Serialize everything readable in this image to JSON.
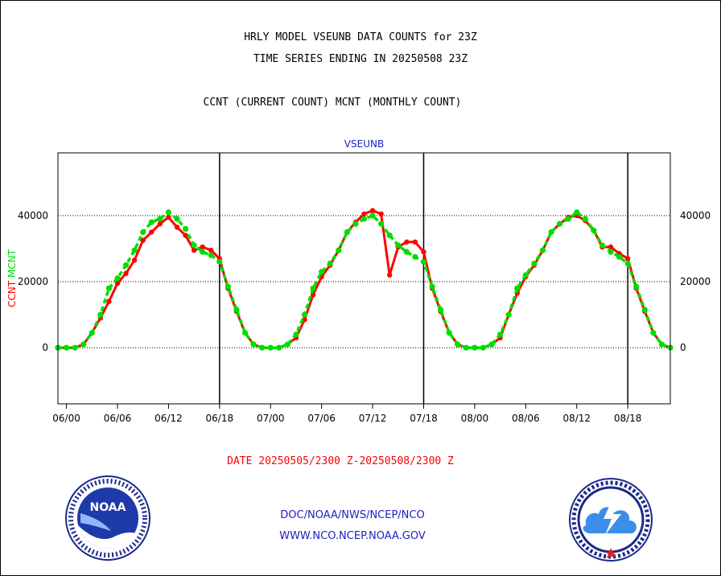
{
  "header": {
    "title_line1": "HRLY MODEL VSEUNB DATA COUNTS for 23Z",
    "title_line2": "TIME SERIES ENDING IN 20250508 23Z",
    "title_line3": "CCNT (CURRENT COUNT) MCNT (MONTHLY COUNT)"
  },
  "footer": {
    "date_range": "DATE 20250505/2300 Z-20250508/2300 Z",
    "agency": "DOC/NOAA/NWS/NCEP/NCO",
    "website": "WWW.NCO.NCEP.NOAA.GOV"
  },
  "logos": {
    "noaa_text": "NOAA"
  },
  "chart_data": {
    "type": "line",
    "panel_label": "VSEUNB",
    "ylabel_ccnt": "CCNT",
    "ylabel_mcnt": "MCNT",
    "ylim": [
      -17000,
      59000
    ],
    "xlim": [
      -1,
      71
    ],
    "y_ticks": [
      0,
      20000,
      40000
    ],
    "y_tick_labels": [
      "0",
      "20000",
      "40000"
    ],
    "x_ticks": [
      0,
      6,
      12,
      18,
      24,
      30,
      36,
      42,
      48,
      54,
      60,
      66
    ],
    "x_tick_labels": [
      "06/00",
      "06/06",
      "06/12",
      "06/18",
      "07/00",
      "07/06",
      "07/12",
      "07/18",
      "08/00",
      "08/06",
      "08/12",
      "08/18"
    ],
    "day_separators": [
      18,
      42,
      66
    ],
    "colors": {
      "ccnt": "#ff0000",
      "mcnt": "#00dd00",
      "axis": "#000000",
      "panel_label": "#2020c0"
    },
    "series": [
      {
        "name": "CCNT",
        "x": [
          -1,
          0,
          1,
          2,
          3,
          4,
          5,
          6,
          7,
          8,
          9,
          10,
          11,
          12,
          13,
          14,
          15,
          16,
          17,
          18,
          19,
          20,
          21,
          22,
          23,
          24,
          25,
          26,
          27,
          28,
          29,
          30,
          31,
          32,
          33,
          34,
          35,
          36,
          37,
          38,
          39,
          40,
          41,
          42,
          43,
          44,
          45,
          46,
          47,
          48,
          49,
          50,
          51,
          52,
          53,
          54,
          55,
          56,
          57,
          58,
          59,
          60,
          61,
          62,
          63,
          64,
          65,
          66,
          67,
          68,
          69,
          70,
          71
        ],
        "values": [
          0,
          0,
          0,
          1000,
          4500,
          9000,
          14000,
          19500,
          22500,
          26500,
          32500,
          35000,
          37500,
          39500,
          36500,
          34000,
          29500,
          30500,
          29500,
          27000,
          18000,
          11000,
          4500,
          1000,
          0,
          0,
          0,
          1000,
          3000,
          8500,
          16000,
          21500,
          25000,
          29500,
          35000,
          38000,
          40500,
          41500,
          40500,
          22000,
          30500,
          32000,
          32000,
          29000,
          18000,
          11000,
          4500,
          1000,
          0,
          0,
          0,
          1000,
          3000,
          10000,
          16500,
          21500,
          25000,
          29500,
          35000,
          37500,
          39500,
          40000,
          38500,
          35500,
          30500,
          30500,
          28500,
          27000,
          18000,
          11000,
          4500,
          1000,
          0
        ]
      },
      {
        "name": "MCNT",
        "x": [
          -1,
          0,
          1,
          2,
          3,
          4,
          5,
          6,
          7,
          8,
          9,
          10,
          11,
          12,
          13,
          14,
          15,
          16,
          17,
          18,
          19,
          20,
          21,
          22,
          23,
          24,
          25,
          26,
          27,
          28,
          29,
          30,
          31,
          32,
          33,
          34,
          35,
          36,
          37,
          38,
          39,
          40,
          41,
          42,
          43,
          44,
          45,
          46,
          47,
          48,
          49,
          50,
          51,
          52,
          53,
          54,
          55,
          56,
          57,
          58,
          59,
          60,
          61,
          62,
          63,
          64,
          65,
          66,
          67,
          68,
          69,
          70,
          71
        ],
        "values": [
          0,
          0,
          0,
          1000,
          4500,
          10000,
          18000,
          21000,
          25000,
          29500,
          35000,
          38000,
          39000,
          41000,
          39000,
          36000,
          31000,
          29000,
          28000,
          26000,
          18500,
          11500,
          4500,
          1000,
          0,
          0,
          0,
          1000,
          4000,
          10000,
          18000,
          23000,
          25500,
          29500,
          35000,
          37500,
          39000,
          40000,
          37500,
          34000,
          31000,
          29000,
          27500,
          26000,
          18500,
          11500,
          4500,
          1000,
          0,
          0,
          0,
          1000,
          4000,
          10000,
          18000,
          22000,
          25500,
          29500,
          35000,
          37500,
          39000,
          41000,
          39000,
          35500,
          31000,
          29000,
          27500,
          25500,
          18500,
          11500,
          4500,
          1000,
          0
        ]
      }
    ]
  }
}
